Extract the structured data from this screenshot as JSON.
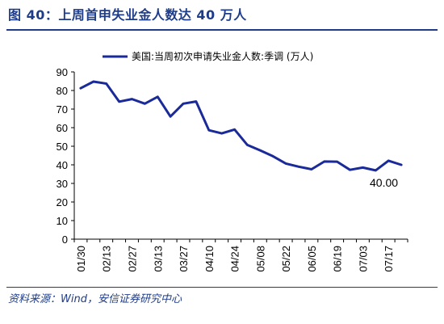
{
  "header": {
    "title": "图 40：上周首申失业金人数达 40 万人"
  },
  "footer": {
    "source": "资料来源：Wind，安信证券研究中心"
  },
  "colors": {
    "accent": "#1f3c88",
    "series": "#1a2b99"
  },
  "chart_data": {
    "type": "line",
    "title": "",
    "xlabel": "",
    "ylabel": "",
    "ylim": [
      0,
      90
    ],
    "yticks": [
      0,
      10,
      20,
      30,
      40,
      50,
      60,
      70,
      80,
      90
    ],
    "grid": false,
    "legend_position": "top-center",
    "x": [
      "01/30",
      "02/06",
      "02/13",
      "02/20",
      "02/27",
      "03/06",
      "03/13",
      "03/20",
      "03/27",
      "04/03",
      "04/10",
      "04/17",
      "04/24",
      "05/01",
      "05/08",
      "05/15",
      "05/22",
      "05/29",
      "06/05",
      "06/12",
      "06/19",
      "06/26",
      "07/03",
      "07/10",
      "07/17",
      "07/24"
    ],
    "x_tick_labels": [
      "01/30",
      "02/13",
      "02/27",
      "03/13",
      "03/27",
      "04/10",
      "04/24",
      "05/08",
      "05/22",
      "06/05",
      "06/19",
      "07/03",
      "07/17"
    ],
    "series": [
      {
        "name": "美国:当周初次申请失业金人数:季调 (万人)",
        "values": [
          81.2,
          84.8,
          83.7,
          74.0,
          75.4,
          72.9,
          76.6,
          66.0,
          72.9,
          74.1,
          58.6,
          56.9,
          59.0,
          50.7,
          47.8,
          44.6,
          40.7,
          39.0,
          37.6,
          41.8,
          41.7,
          37.3,
          38.5,
          37.0,
          42.2,
          40.0
        ]
      }
    ],
    "annotations": [
      {
        "text": "40.00",
        "x": "07/24"
      }
    ]
  }
}
